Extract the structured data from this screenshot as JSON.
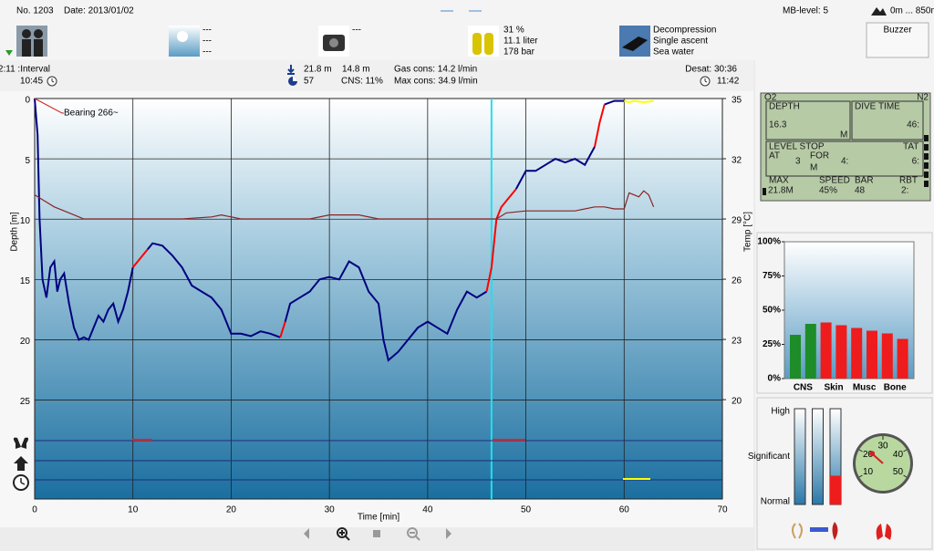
{
  "header": {
    "number": "No. 1203",
    "date": "Date: 2013/01/02",
    "mb_level": "MB-level: 5",
    "altitude": "0m ... 850m",
    "buzzer": "Buzzer",
    "items": [
      {
        "lines": [
          "---",
          "---",
          "---"
        ]
      },
      {
        "lines": [
          "---"
        ]
      },
      {
        "lines": [
          "31 %",
          "11.1 liter",
          "178 bar"
        ]
      },
      {
        "lines": [
          "Decompression",
          "Single ascent",
          "Sea water"
        ]
      }
    ]
  },
  "info": {
    "interval": "2:11 :Interval",
    "time_start": "10:45",
    "max_depth": "21.8 m",
    "avg_depth": "14.8 m",
    "duration": "57",
    "cns": "CNS:  11%",
    "gas_cons": "Gas cons: 14.2 l/min",
    "max_cons": "Max cons: 34.9 l/min",
    "desat": "Desat: 30:36",
    "time_end": "11:42"
  },
  "chart_data": {
    "type": "line",
    "xlabel": "Time [min]",
    "ylabel": "Depth [m]",
    "y2label": "Temp [°C]",
    "annotation": "Bearing 266~",
    "xlim": [
      0,
      70
    ],
    "xticks": [
      0,
      10,
      20,
      30,
      40,
      50,
      60,
      70
    ],
    "ylim": [
      0,
      33.2
    ],
    "yticks": [
      0,
      5,
      10,
      15,
      20,
      25
    ],
    "y2lim": [
      35,
      15.05
    ],
    "y2ticks": [
      35,
      32,
      29,
      26,
      23,
      20
    ],
    "grid": true,
    "cursor": 46.5,
    "series": [
      {
        "color": "#00007f",
        "x": [
          0,
          0.3,
          0.5,
          0.8,
          1.2,
          1.6,
          2,
          2.3,
          2.6,
          3,
          3.5,
          4,
          4.5,
          5,
          5.5,
          6,
          6.5,
          7,
          7.5,
          8,
          8.5,
          9,
          9.5,
          10,
          10.5,
          11,
          11.5,
          12,
          13,
          14,
          15,
          16,
          17,
          18,
          19,
          20,
          21,
          22,
          23,
          24,
          25,
          25.5,
          26,
          27,
          28,
          29,
          30,
          31,
          32,
          33,
          34,
          35,
          35.5,
          36,
          37,
          38,
          39,
          40,
          41,
          42,
          43,
          44,
          45,
          46,
          46.5,
          47,
          47.5,
          48,
          49,
          50,
          51,
          52,
          53,
          54,
          55,
          56,
          57,
          57.5,
          58,
          59,
          60,
          60.5,
          61,
          62,
          63
        ],
        "values": [
          0,
          3,
          10,
          15,
          16.5,
          14,
          13.5,
          16,
          15,
          14.5,
          17,
          19,
          20,
          19.8,
          20,
          19,
          18,
          18.5,
          17.5,
          17,
          18.5,
          17.5,
          16,
          14,
          13.5,
          13,
          12.5,
          12,
          12.2,
          13,
          14,
          15.5,
          16,
          16.5,
          17.5,
          19.5,
          19.5,
          19.7,
          19.3,
          19.5,
          19.8,
          18.5,
          17,
          16.5,
          16,
          15,
          14.8,
          15,
          13.5,
          14,
          16,
          17,
          20,
          21.7,
          21,
          20,
          19,
          18.5,
          19,
          19.5,
          17.5,
          16,
          16.5,
          16,
          14,
          10,
          9,
          8.5,
          7.5,
          6,
          6,
          5.5,
          5,
          5.3,
          5,
          5.5,
          4,
          2,
          0.5,
          0.2,
          0.2,
          0.3,
          0.2,
          0.3,
          0.2
        ],
        "colors": [
          "#00007f",
          "#00007f",
          "#00007f",
          "#00007f",
          "#00007f",
          "#00007f",
          "#00007f",
          "#00007f",
          "#00007f",
          "#00007f",
          "#00007f",
          "#00007f",
          "#00007f",
          "#00007f",
          "#00007f",
          "#00007f",
          "#00007f",
          "#00007f",
          "#00007f",
          "#00007f",
          "#00007f",
          "#00007f",
          "#00007f",
          "#00007f",
          "#ff0000",
          "#ff0000",
          "#ff0000",
          "#00007f",
          "#00007f",
          "#00007f",
          "#00007f",
          "#00007f",
          "#00007f",
          "#00007f",
          "#00007f",
          "#00007f",
          "#00007f",
          "#00007f",
          "#00007f",
          "#00007f",
          "#00007f",
          "#ff0000",
          "#00007f",
          "#00007f",
          "#00007f",
          "#00007f",
          "#00007f",
          "#00007f",
          "#00007f",
          "#00007f",
          "#00007f",
          "#00007f",
          "#00007f",
          "#00007f",
          "#00007f",
          "#00007f",
          "#00007f",
          "#00007f",
          "#00007f",
          "#00007f",
          "#00007f",
          "#00007f",
          "#00007f",
          "#00007f",
          "#ff0000",
          "#ff0000",
          "#ff0000",
          "#ff0000",
          "#ff0000",
          "#00007f",
          "#00007f",
          "#00007f",
          "#00007f",
          "#00007f",
          "#00007f",
          "#00007f",
          "#00007f",
          "#ff0000",
          "#ff0000",
          "#00007f",
          "#00007f",
          "#ffff00",
          "#ffff00",
          "#ffff00",
          "#ffff00"
        ]
      },
      {
        "color": "#8b2323",
        "axis": "y2",
        "x": [
          0,
          1,
          2,
          3,
          4,
          5,
          10,
          15,
          18,
          19,
          20,
          21,
          25,
          28,
          30,
          33,
          35,
          38,
          40,
          45,
          47,
          48,
          50,
          55,
          57,
          58,
          59,
          60,
          60.5,
          61,
          61.5,
          62,
          62.5,
          63
        ],
        "values": [
          30.2,
          29.9,
          29.6,
          29.4,
          29.2,
          29.0,
          29.0,
          29.0,
          29.1,
          29.2,
          29.1,
          29.0,
          29.0,
          29.0,
          29.2,
          29.2,
          29.0,
          29.0,
          29.0,
          29.0,
          29.0,
          29.3,
          29.4,
          29.4,
          29.6,
          29.6,
          29.5,
          29.5,
          30.3,
          30.2,
          30.1,
          30.4,
          30.2,
          29.6
        ]
      }
    ]
  },
  "computer": {
    "o2": "O2",
    "n2": "N2",
    "depth_label": "DEPTH",
    "depth": "16.3",
    "depth_unit": "M",
    "time_label": "DIVE TIME",
    "time": "46:",
    "level_stop": "LEVEL STOP",
    "at": "AT",
    "stop_depth": "3",
    "for": "FOR",
    "stop_unit": "M",
    "stop_time": "4:",
    "tat_label": "TAT",
    "tat": "6:",
    "max_label": "MAX",
    "max": "21.8M",
    "speed_label": "SPEED",
    "speed": "45%",
    "bar_label": "BAR",
    "bar": "48",
    "rbt_label": "RBT",
    "rbt": "2:"
  },
  "tissue_chart": {
    "type": "bar",
    "categories": [
      "CNS",
      null,
      "Skin",
      null,
      "Musc",
      null,
      "Bone",
      null
    ],
    "values": [
      32,
      40,
      41,
      39,
      37,
      35,
      33,
      29
    ],
    "colors": [
      "#1e8c28",
      "#1e8c28",
      "#ee1c1c",
      "#ee1c1c",
      "#ee1c1c",
      "#ee1c1c",
      "#ee1c1c",
      "#ee1c1c"
    ],
    "ylim": [
      0,
      100
    ],
    "yticks": [
      {
        "value": 0,
        "label": "0%"
      },
      {
        "value": 25,
        "label": "25%"
      },
      {
        "value": 50,
        "label": "50%"
      },
      {
        "value": 75,
        "label": "75%"
      },
      {
        "value": 100,
        "label": "100%"
      }
    ]
  },
  "gauges": {
    "levels": [
      "High",
      "Significant",
      "Normal"
    ],
    "values": [
      0,
      0,
      30
    ],
    "colors": [
      "#d0d0d0",
      "#d0d0d0",
      "#ee1c1c"
    ],
    "dial_ticks": [
      10,
      20,
      30,
      40,
      50
    ],
    "dial_value": 22
  }
}
